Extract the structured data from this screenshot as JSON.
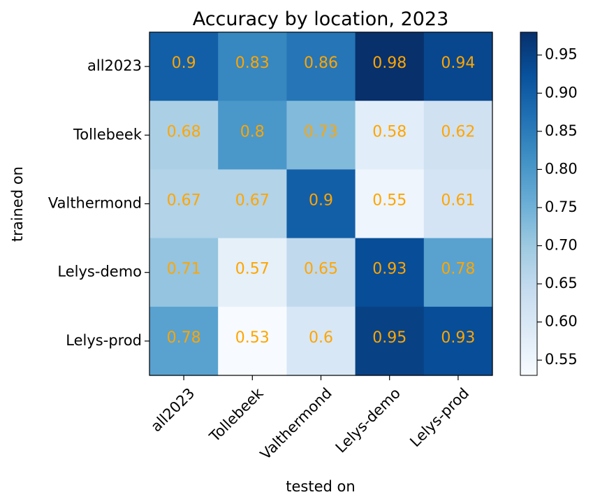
{
  "chart_data": {
    "type": "heatmap",
    "title": "Accuracy by location, 2023",
    "xlabel": "tested on",
    "ylabel": "trained on",
    "x_categories": [
      "all2023",
      "Tollebeek",
      "Valthermond",
      "Lelys-demo",
      "Lelys-prod"
    ],
    "y_categories": [
      "all2023",
      "Tollebeek",
      "Valthermond",
      "Lelys-demo",
      "Lelys-prod"
    ],
    "values": [
      [
        0.9,
        0.83,
        0.86,
        0.98,
        0.94
      ],
      [
        0.68,
        0.8,
        0.73,
        0.58,
        0.62
      ],
      [
        0.67,
        0.67,
        0.9,
        0.55,
        0.61
      ],
      [
        0.71,
        0.57,
        0.65,
        0.93,
        0.78
      ],
      [
        0.78,
        0.53,
        0.6,
        0.95,
        0.93
      ]
    ],
    "colorbar": {
      "min": 0.53,
      "max": 0.98,
      "ticks": [
        0.55,
        0.6,
        0.65,
        0.7,
        0.75,
        0.8,
        0.85,
        0.9,
        0.95
      ],
      "tick_labels": [
        "0.55",
        "0.60",
        "0.65",
        "0.70",
        "0.75",
        "0.80",
        "0.85",
        "0.90",
        "0.95"
      ]
    },
    "colormap": "Blues",
    "cell_label_color": "#ffa500",
    "grid": false,
    "legend": "none"
  }
}
